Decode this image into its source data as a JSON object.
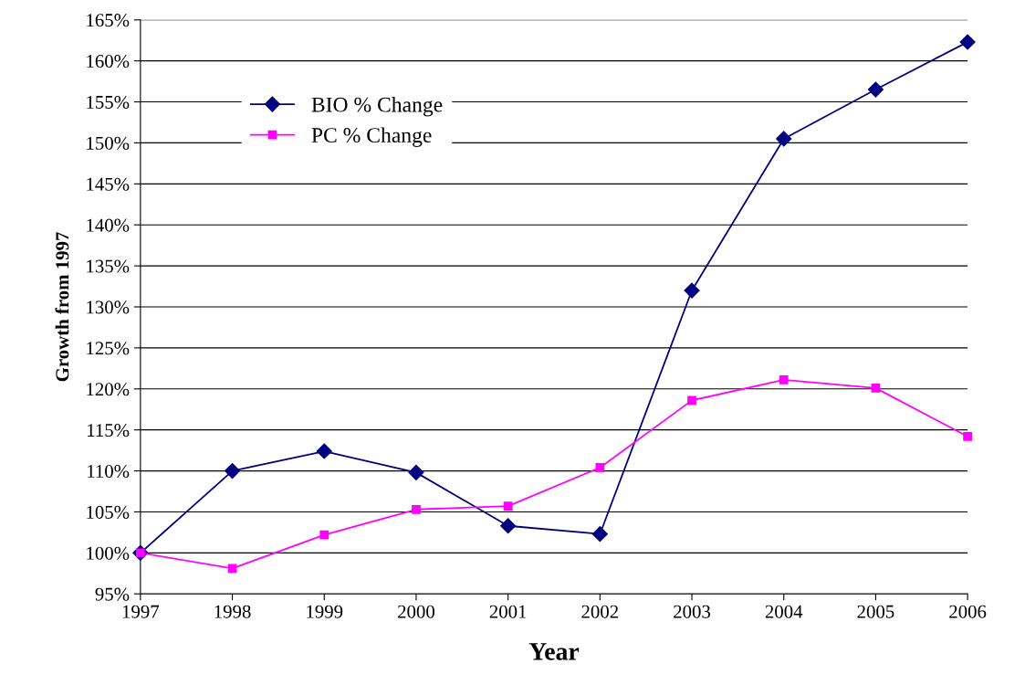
{
  "chart_data": {
    "type": "line",
    "xlabel": "Year",
    "ylabel": "Growth from 1997",
    "categories": [
      "1997",
      "1998",
      "1999",
      "2000",
      "2001",
      "2002",
      "2003",
      "2004",
      "2005",
      "2006"
    ],
    "series": [
      {
        "name": "BIO % Change",
        "color": "#000080",
        "marker": "diamond",
        "values": [
          100,
          110,
          112.4,
          109.8,
          103.3,
          102.3,
          132,
          150.5,
          156.5,
          162.3
        ]
      },
      {
        "name": "PC % Change",
        "color": "#ff00ff",
        "marker": "square",
        "values": [
          100,
          98.1,
          102.2,
          105.3,
          105.7,
          110.4,
          118.6,
          121.1,
          120.1,
          114.2
        ]
      }
    ],
    "ylim": [
      95,
      165
    ],
    "yticks": [
      {
        "value": 95,
        "label": "95%"
      },
      {
        "value": 100,
        "label": "100%"
      },
      {
        "value": 105,
        "label": "105%"
      },
      {
        "value": 110,
        "label": "110%"
      },
      {
        "value": 115,
        "label": "115%"
      },
      {
        "value": 120,
        "label": "120%"
      },
      {
        "value": 125,
        "label": "125%"
      },
      {
        "value": 130,
        "label": "130%"
      },
      {
        "value": 135,
        "label": "135%"
      },
      {
        "value": 140,
        "label": "140%"
      },
      {
        "value": 145,
        "label": "145%"
      },
      {
        "value": 150,
        "label": "150%"
      },
      {
        "value": 155,
        "label": "155%"
      },
      {
        "value": 160,
        "label": "160%"
      },
      {
        "value": 165,
        "label": "165%"
      }
    ],
    "grid": "y",
    "legend": "top left",
    "line_style": "solid"
  }
}
